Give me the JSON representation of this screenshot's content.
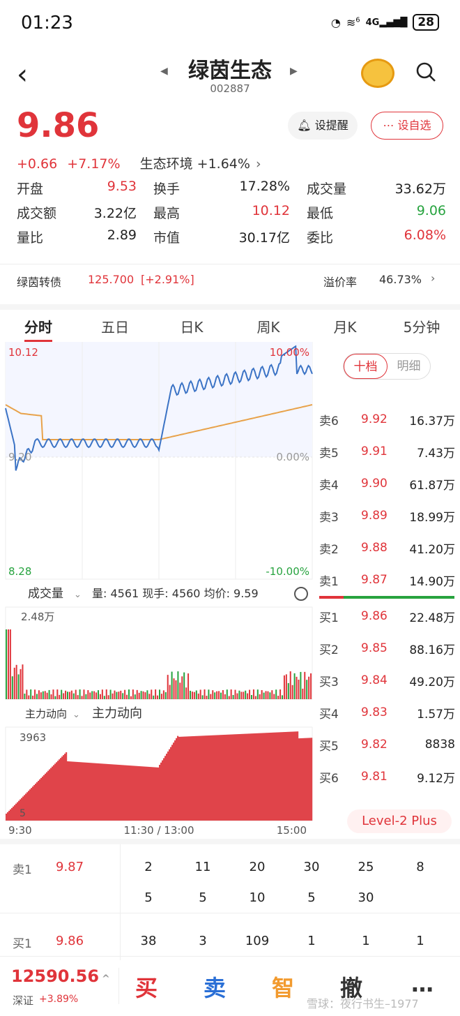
{
  "status_bar": {
    "time": "01:23",
    "signal": "6",
    "network": "4G",
    "battery": "28"
  },
  "header": {
    "title": "绿茵生态",
    "code": "002887"
  },
  "quote": {
    "price": "9.86",
    "change": "+0.66",
    "change_pct": "+7.17%",
    "sector": "生态环境 +1.64%",
    "alert_label": "设提醒",
    "watch_label": "设自选",
    "rows": [
      [
        {
          "label": "开盘",
          "value": "9.53",
          "color": "red"
        },
        {
          "label": "换手",
          "value": "17.28%",
          "color": "black"
        },
        {
          "label": "成交量",
          "value": "33.62万",
          "color": "black"
        }
      ],
      [
        {
          "label": "成交额",
          "value": "3.22亿",
          "color": "black"
        },
        {
          "label": "最高",
          "value": "10.12",
          "color": "red"
        },
        {
          "label": "最低",
          "value": "9.06",
          "color": "green"
        }
      ],
      [
        {
          "label": "量比",
          "value": "2.89",
          "color": "black"
        },
        {
          "label": "市值",
          "value": "30.17亿",
          "color": "black"
        },
        {
          "label": "委比",
          "value": "6.08%",
          "color": "red"
        }
      ]
    ]
  },
  "bond": {
    "label": "绿茵转债",
    "value": "125.700",
    "change": "[+2.91%]",
    "premium_label": "溢价率",
    "premium": "46.73%"
  },
  "tabs": [
    "分时",
    "五日",
    "日K",
    "周K",
    "月K",
    "5分钟"
  ],
  "chart": {
    "price_high": "10.12",
    "price_mid": "9.20",
    "price_low": "8.28",
    "pct_high": "10.00%",
    "pct_mid": "0.00%",
    "pct_low": "-10.00%",
    "volume_label": "成交量",
    "volume_info": "量: 4561  现手: 4560  均价: 9.59",
    "volume_max": "2.48万",
    "flow_selector": "主力动向",
    "flow_title": "主力动向",
    "flow_max": "3963",
    "flow_min": "5",
    "time_start": "9:30",
    "time_mid": "11:30 / 13:00",
    "time_end": "15:00"
  },
  "book": {
    "tab_active": "十档",
    "tab_other": "明细",
    "sells": [
      {
        "label": "卖6",
        "price": "9.92",
        "vol": "16.37万"
      },
      {
        "label": "卖5",
        "price": "9.91",
        "vol": "7.43万"
      },
      {
        "label": "卖4",
        "price": "9.90",
        "vol": "61.87万"
      },
      {
        "label": "卖3",
        "price": "9.89",
        "vol": "18.99万"
      },
      {
        "label": "卖2",
        "price": "9.88",
        "vol": "41.20万"
      },
      {
        "label": "卖1",
        "price": "9.87",
        "vol": "14.90万"
      }
    ],
    "buys": [
      {
        "label": "买1",
        "price": "9.86",
        "vol": "22.48万"
      },
      {
        "label": "买2",
        "price": "9.85",
        "vol": "88.16万"
      },
      {
        "label": "买3",
        "price": "9.84",
        "vol": "49.20万"
      },
      {
        "label": "买4",
        "price": "9.83",
        "vol": "1.57万"
      },
      {
        "label": "买5",
        "price": "9.82",
        "vol": "8838"
      },
      {
        "label": "买6",
        "price": "9.81",
        "vol": "9.12万"
      }
    ],
    "level2": "Level-2 Plus"
  },
  "queue": {
    "sell_label": "卖1",
    "sell_price": "9.87",
    "sell_row1": [
      "2",
      "11",
      "20",
      "30",
      "25",
      "8"
    ],
    "sell_row2": [
      "5",
      "5",
      "10",
      "5",
      "30"
    ],
    "buy_label": "买1",
    "buy_price": "9.86",
    "buy_row": [
      "38",
      "3",
      "109",
      "1",
      "1",
      "1"
    ]
  },
  "footer": {
    "index_value": "12590.56",
    "index_name": "深证",
    "index_change": "+3.89%",
    "buy": "买",
    "sell": "卖",
    "smart": "智",
    "cancel": "撤",
    "more": "…",
    "watermark": "雪球：夜行书生–1977"
  }
}
